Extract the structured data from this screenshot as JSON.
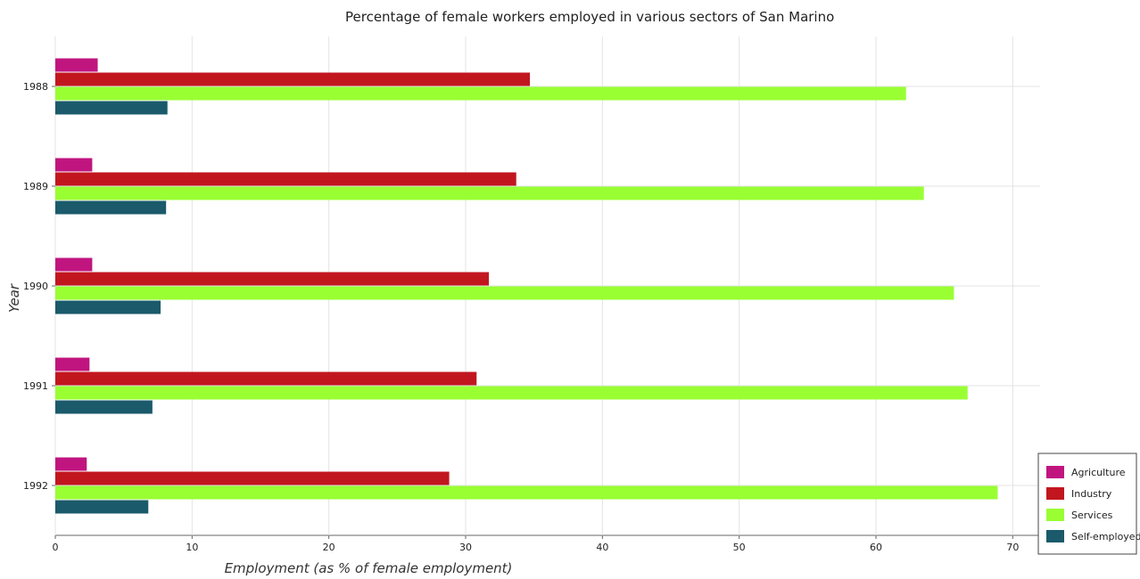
{
  "chart_data": {
    "type": "bar",
    "orientation": "horizontal",
    "title": "Percentage of female workers employed in various sectors of San Marino",
    "xlabel": "Employment (as % of female employment)",
    "ylabel": "Year",
    "xlim": [
      0,
      72
    ],
    "xticks": [
      0,
      10,
      20,
      30,
      40,
      50,
      60,
      70
    ],
    "grid": true,
    "legend_position": "bottom-right",
    "categories": [
      "1988",
      "1989",
      "1990",
      "1991",
      "1992"
    ],
    "series": [
      {
        "name": "Agriculture",
        "color": "#c0157f",
        "values": [
          3.1,
          2.7,
          2.7,
          2.5,
          2.3
        ]
      },
      {
        "name": "Industry",
        "color": "#c2161f",
        "values": [
          34.7,
          33.7,
          31.7,
          30.8,
          28.8
        ]
      },
      {
        "name": "Services",
        "color": "#99ff33",
        "values": [
          62.2,
          63.5,
          65.7,
          66.7,
          68.9
        ]
      },
      {
        "name": "Self-employed",
        "color": "#1a5a6b",
        "values": [
          8.2,
          8.1,
          7.7,
          7.1,
          6.8
        ]
      }
    ]
  }
}
